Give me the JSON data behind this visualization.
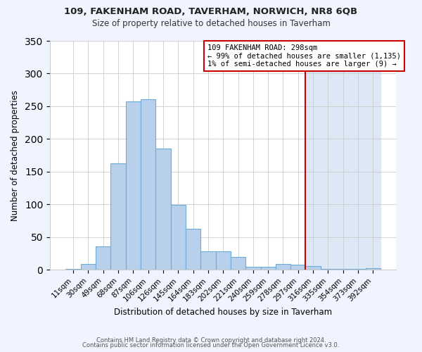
{
  "title1": "109, FAKENHAM ROAD, TAVERHAM, NORWICH, NR8 6QB",
  "title2": "Size of property relative to detached houses in Taverham",
  "xlabel": "Distribution of detached houses by size in Taverham",
  "ylabel": "Number of detached properties",
  "categories": [
    "11sqm",
    "30sqm",
    "49sqm",
    "68sqm",
    "87sqm",
    "106sqm",
    "126sqm",
    "145sqm",
    "164sqm",
    "183sqm",
    "202sqm",
    "221sqm",
    "240sqm",
    "259sqm",
    "278sqm",
    "297sqm",
    "316sqm",
    "335sqm",
    "354sqm",
    "373sqm",
    "392sqm"
  ],
  "values": [
    2,
    9,
    36,
    163,
    258,
    261,
    185,
    99,
    63,
    29,
    29,
    20,
    5,
    5,
    9,
    8,
    6,
    2,
    2,
    2,
    3
  ],
  "bar_color": "#b8d0eb",
  "bar_edge_color": "#6aaed6",
  "vline_color": "#cc0000",
  "vline_x_idx": 15,
  "annotation_line1": "109 FAKENHAM ROAD: 298sqm",
  "annotation_line2": "← 99% of detached houses are smaller (1,135)",
  "annotation_line3": "1% of semi-detached houses are larger (9) →",
  "box_fill_color": "#ffffff",
  "box_edge_color": "#cc0000",
  "footer1": "Contains HM Land Registry data © Crown copyright and database right 2024.",
  "footer2": "Contains public sector information licensed under the Open Government Licence v3.0.",
  "bg_color": "#f0f4ff",
  "plot_bg_color": "#ffffff",
  "shade_color": "#dce8f5",
  "ylim": [
    0,
    350
  ],
  "yticks": [
    0,
    50,
    100,
    150,
    200,
    250,
    300,
    350
  ]
}
